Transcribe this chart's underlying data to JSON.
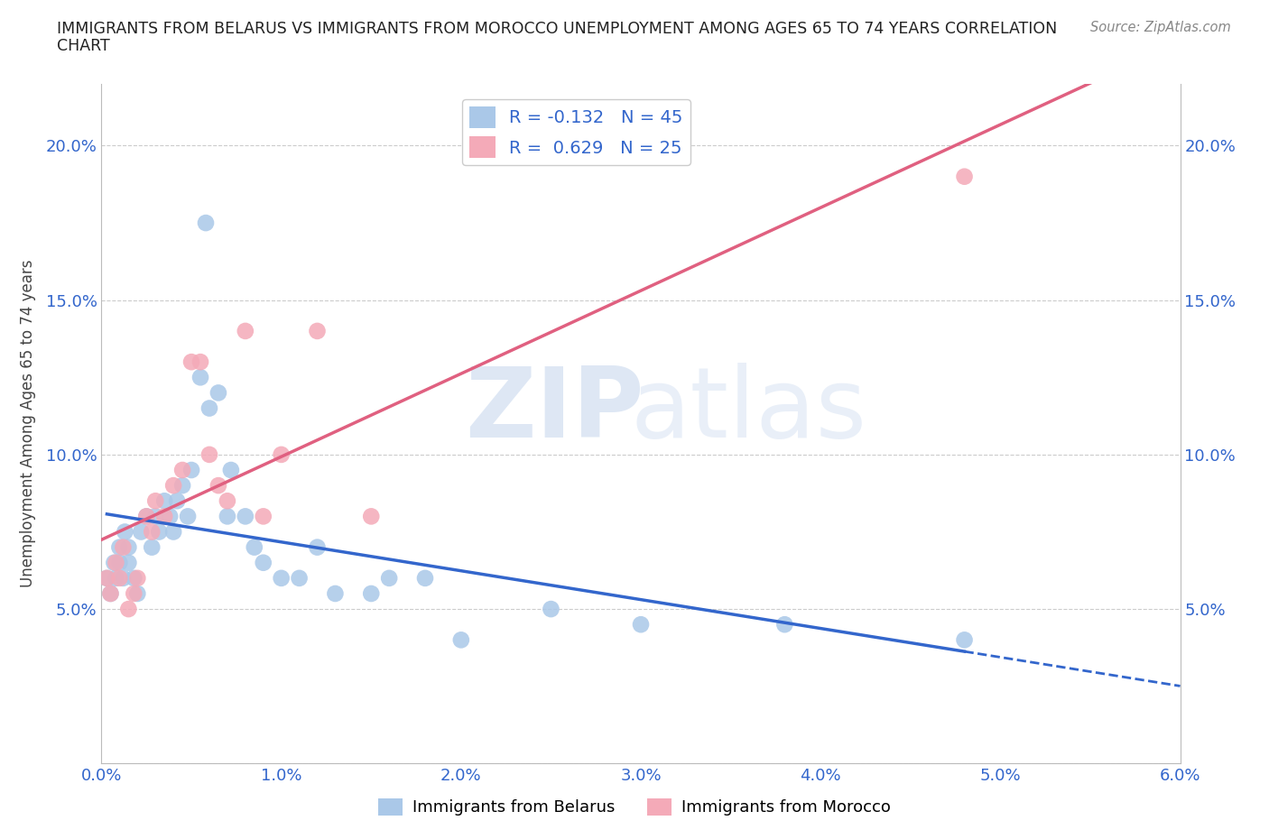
{
  "title_line1": "IMMIGRANTS FROM BELARUS VS IMMIGRANTS FROM MOROCCO UNEMPLOYMENT AMONG AGES 65 TO 74 YEARS CORRELATION",
  "title_line2": "CHART",
  "source": "Source: ZipAtlas.com",
  "ylabel": "Unemployment Among Ages 65 to 74 years",
  "xlim": [
    0.0,
    0.06
  ],
  "ylim": [
    0.0,
    0.22
  ],
  "xticks": [
    0.0,
    0.01,
    0.02,
    0.03,
    0.04,
    0.05,
    0.06
  ],
  "yticks": [
    0.0,
    0.05,
    0.1,
    0.15,
    0.2
  ],
  "xticklabels": [
    "0.0%",
    "1.0%",
    "2.0%",
    "3.0%",
    "4.0%",
    "5.0%",
    "6.0%"
  ],
  "yticklabels_left": [
    "",
    "5.0%",
    "10.0%",
    "15.0%",
    "20.0%"
  ],
  "yticklabels_right": [
    "",
    "5.0%",
    "10.0%",
    "15.0%",
    "20.0%"
  ],
  "belarus_color": "#aac8e8",
  "morocco_color": "#f4aab8",
  "belarus_line_color": "#3366cc",
  "morocco_line_color": "#e06080",
  "R_belarus": -0.132,
  "N_belarus": 45,
  "R_morocco": 0.629,
  "N_morocco": 25,
  "belarus_x": [
    0.0003,
    0.0005,
    0.0007,
    0.0008,
    0.001,
    0.001,
    0.0012,
    0.0013,
    0.0015,
    0.0015,
    0.0018,
    0.002,
    0.0022,
    0.0025,
    0.0028,
    0.003,
    0.0032,
    0.0035,
    0.0038,
    0.004,
    0.0042,
    0.0045,
    0.0048,
    0.005,
    0.0055,
    0.0058,
    0.006,
    0.0065,
    0.007,
    0.0072,
    0.008,
    0.0085,
    0.009,
    0.01,
    0.011,
    0.012,
    0.013,
    0.015,
    0.016,
    0.018,
    0.02,
    0.025,
    0.03,
    0.038,
    0.048
  ],
  "belarus_y": [
    0.06,
    0.055,
    0.065,
    0.06,
    0.065,
    0.07,
    0.06,
    0.075,
    0.065,
    0.07,
    0.06,
    0.055,
    0.075,
    0.08,
    0.07,
    0.08,
    0.075,
    0.085,
    0.08,
    0.075,
    0.085,
    0.09,
    0.08,
    0.095,
    0.125,
    0.175,
    0.115,
    0.12,
    0.08,
    0.095,
    0.08,
    0.07,
    0.065,
    0.06,
    0.06,
    0.07,
    0.055,
    0.055,
    0.06,
    0.06,
    0.04,
    0.05,
    0.045,
    0.045,
    0.04
  ],
  "morocco_x": [
    0.0003,
    0.0005,
    0.0008,
    0.001,
    0.0012,
    0.0015,
    0.0018,
    0.002,
    0.0025,
    0.0028,
    0.003,
    0.0035,
    0.004,
    0.0045,
    0.005,
    0.0055,
    0.006,
    0.0065,
    0.007,
    0.008,
    0.009,
    0.01,
    0.012,
    0.015,
    0.048
  ],
  "morocco_y": [
    0.06,
    0.055,
    0.065,
    0.06,
    0.07,
    0.05,
    0.055,
    0.06,
    0.08,
    0.075,
    0.085,
    0.08,
    0.09,
    0.095,
    0.13,
    0.13,
    0.1,
    0.09,
    0.085,
    0.14,
    0.08,
    0.1,
    0.14,
    0.08,
    0.19
  ],
  "legend_label_belarus": "Immigrants from Belarus",
  "legend_label_morocco": "Immigrants from Morocco",
  "background_color": "#ffffff",
  "grid_color": "#cccccc"
}
